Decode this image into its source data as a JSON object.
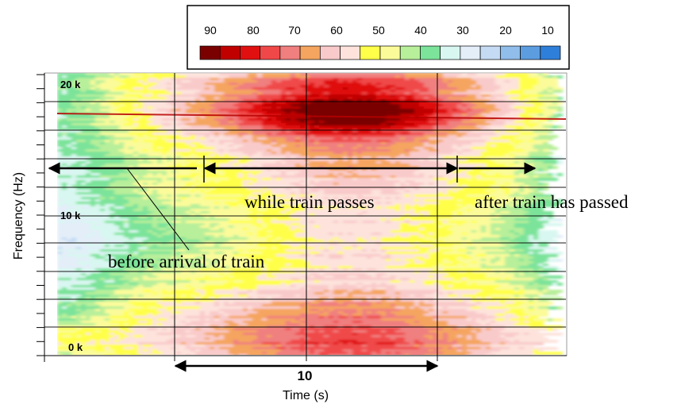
{
  "chart_data": {
    "type": "heatmap",
    "title": "",
    "xlabel": "Time (s)",
    "ylabel": "Frequency (Hz)",
    "y_tick_labels": [
      "20 k",
      "10 k",
      "0 k"
    ],
    "y_tick_values": [
      20000,
      10000,
      0
    ],
    "ylim": [
      0,
      21000
    ],
    "colorbar": {
      "tick_labels": [
        "90",
        "80",
        "70",
        "60",
        "50",
        "40",
        "30",
        "20",
        "10"
      ],
      "levels": [
        90,
        85,
        80,
        75,
        70,
        65,
        60,
        55,
        50,
        45,
        40,
        35,
        30,
        25,
        20,
        15,
        10,
        5
      ],
      "colors": [
        "#7a0000",
        "#c00000",
        "#e01010",
        "#f04848",
        "#f07f7f",
        "#f5a55f",
        "#f9caca",
        "#fde3dc",
        "#ffff4a",
        "#fbfb9a",
        "#b8ef9a",
        "#7ce39a",
        "#d8f7f0",
        "#e3eef9",
        "#c5dbf3",
        "#90bdea",
        "#5c9de0",
        "#2e7fd9"
      ]
    },
    "time_span": {
      "label": "10",
      "duration_s": 10
    },
    "annotations": {
      "before": "before arrival of train",
      "during": "while train passes",
      "after": "after train has passed"
    },
    "grid": true
  }
}
